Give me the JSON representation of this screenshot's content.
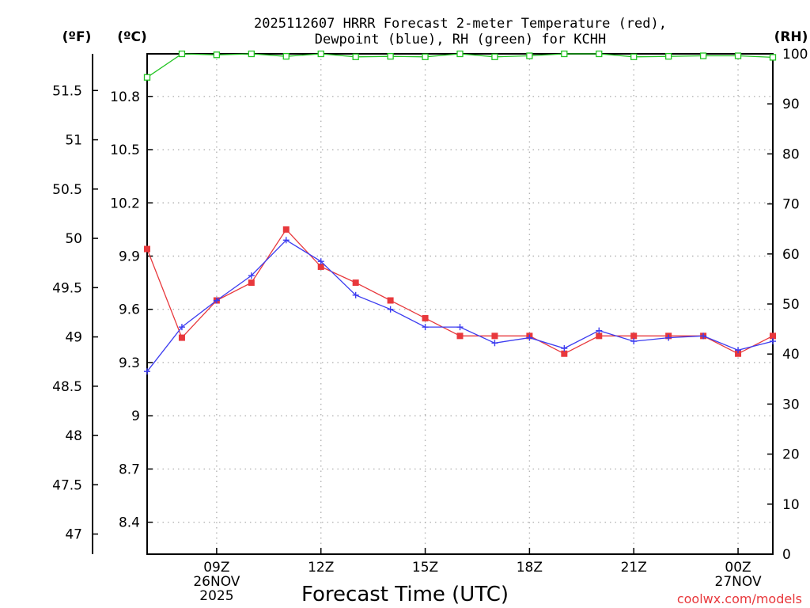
{
  "chart_data": {
    "type": "line",
    "title": [
      "2025112607 HRRR Forecast 2-meter Temperature (red),",
      "Dewpoint (blue), RH (green) for KCHH"
    ],
    "xlabel": "Forecast Time (UTC)",
    "credit": "coolwx.com/models",
    "units": {
      "left_outer": "(ºF)",
      "left_inner": "(ºC)",
      "right": "(RH)"
    },
    "x": [
      7,
      8,
      9,
      10,
      11,
      12,
      13,
      14,
      15,
      16,
      17,
      18,
      19,
      20,
      21,
      22,
      23,
      24,
      25
    ],
    "xlim": [
      7,
      25
    ],
    "x_ticks": [
      {
        "x": 9,
        "lines": [
          "09Z",
          "26NOV",
          "2025"
        ]
      },
      {
        "x": 12,
        "lines": [
          "12Z"
        ]
      },
      {
        "x": 15,
        "lines": [
          "15Z"
        ]
      },
      {
        "x": 18,
        "lines": [
          "18Z"
        ]
      },
      {
        "x": 21,
        "lines": [
          "21Z"
        ]
      },
      {
        "x": 24,
        "lines": [
          "00Z",
          "27NOV"
        ]
      }
    ],
    "celsius_axis": {
      "lim": [
        8.22,
        11.04
      ],
      "ticks": [
        "8.4",
        "8.7",
        "9",
        "9.3",
        "9.6",
        "9.9",
        "10.2",
        "10.5",
        "10.8"
      ]
    },
    "fahrenheit_axis": {
      "ticks": [
        "47",
        "47.5",
        "48",
        "48.5",
        "49",
        "49.5",
        "50",
        "50.5",
        "51",
        "51.5"
      ]
    },
    "rh_axis": {
      "lim": [
        0,
        100
      ],
      "ticks": [
        "0",
        "10",
        "20",
        "30",
        "40",
        "50",
        "60",
        "70",
        "80",
        "90",
        "100"
      ]
    },
    "series": [
      {
        "name": "Temperature",
        "axis": "celsius",
        "color": "#e8383c",
        "marker": "square",
        "values": [
          9.94,
          9.44,
          9.65,
          9.75,
          10.05,
          9.84,
          9.75,
          9.65,
          9.55,
          9.45,
          9.45,
          9.45,
          9.35,
          9.45,
          9.45,
          9.45,
          9.45,
          9.35,
          9.45
        ]
      },
      {
        "name": "Dewpoint",
        "axis": "celsius",
        "color": "#3c3cf0",
        "marker": "plus",
        "values": [
          9.25,
          9.5,
          9.65,
          9.79,
          9.99,
          9.87,
          9.68,
          9.6,
          9.5,
          9.5,
          9.41,
          9.44,
          9.38,
          9.48,
          9.42,
          9.44,
          9.45,
          9.37,
          9.42
        ]
      },
      {
        "name": "RH",
        "axis": "rh",
        "color": "#22c422",
        "marker": "open-square",
        "values": [
          95.3,
          100,
          99.8,
          100,
          99.5,
          100,
          99.4,
          99.5,
          99.4,
          100,
          99.4,
          99.6,
          100,
          100,
          99.4,
          99.5,
          99.6,
          99.6,
          99.3
        ]
      }
    ]
  }
}
